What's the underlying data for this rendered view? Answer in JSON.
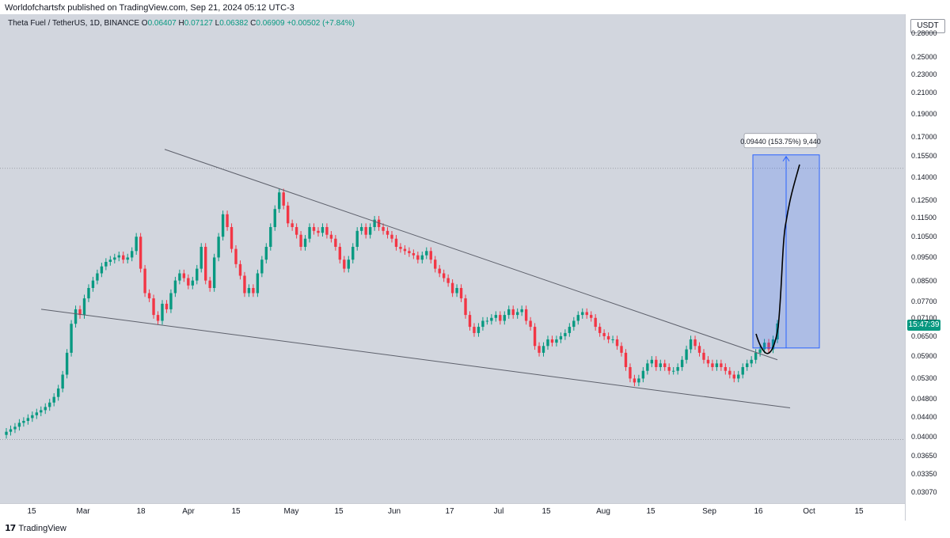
{
  "header": {
    "published": "Worldofchartsfx published on TradingView.com, Sep 21, 2024 05:12 UTC-3"
  },
  "legend": {
    "symbol": "Theta Fuel / TetherUS, 1D, BINANCE",
    "open_label": "O",
    "open": "0.06407",
    "high_label": "H",
    "high": "0.07127",
    "low_label": "L",
    "low": "0.06382",
    "close_label": "C",
    "close": "0.06909",
    "change": "+0.00502 (+7.84%)"
  },
  "price_axis": {
    "currency": "USDT",
    "last_price_badge": "15:47:39"
  },
  "footer": {
    "brand": "TradingView"
  },
  "colors": {
    "up": "#089981",
    "down": "#f23645",
    "measure": "#2962ff",
    "bg": "#d2d6de"
  },
  "chart_data": {
    "type": "candlestick",
    "title": "Theta Fuel / TetherUS, 1D, BINANCE",
    "scale": "log",
    "y_ticks": [
      "0.28000",
      "0.25000",
      "0.23000",
      "0.21000",
      "0.19000",
      "0.17000",
      "0.15500",
      "0.14000",
      "0.12500",
      "0.11500",
      "0.10500",
      "0.09500",
      "0.08500",
      "0.07700",
      "0.07100",
      "0.06500",
      "0.05900",
      "0.05300",
      "0.04800",
      "0.04400",
      "0.04000",
      "0.03650",
      "0.03350",
      "0.03070"
    ],
    "x_ticks": [
      "15",
      "Mar",
      "18",
      "Apr",
      "15",
      "May",
      "15",
      "Jun",
      "17",
      "Jul",
      "15",
      "Aug",
      "15",
      "Sep",
      "16",
      "Oct",
      "15"
    ],
    "ylim": [
      0.0295,
      0.3
    ],
    "closes": [
      0.041,
      0.0415,
      0.042,
      0.0428,
      0.0432,
      0.0438,
      0.0444,
      0.045,
      0.0455,
      0.0462,
      0.0472,
      0.0485,
      0.0505,
      0.054,
      0.06,
      0.069,
      0.074,
      0.072,
      0.078,
      0.082,
      0.085,
      0.088,
      0.091,
      0.093,
      0.094,
      0.095,
      0.096,
      0.094,
      0.095,
      0.098,
      0.105,
      0.09,
      0.08,
      0.078,
      0.072,
      0.07,
      0.076,
      0.074,
      0.08,
      0.085,
      0.088,
      0.086,
      0.083,
      0.085,
      0.09,
      0.1,
      0.085,
      0.082,
      0.095,
      0.105,
      0.117,
      0.11,
      0.099,
      0.092,
      0.087,
      0.08,
      0.082,
      0.08,
      0.088,
      0.094,
      0.1,
      0.11,
      0.12,
      0.13,
      0.122,
      0.112,
      0.11,
      0.106,
      0.1,
      0.104,
      0.11,
      0.108,
      0.107,
      0.11,
      0.106,
      0.104,
      0.1,
      0.094,
      0.09,
      0.094,
      0.1,
      0.108,
      0.11,
      0.106,
      0.11,
      0.114,
      0.11,
      0.108,
      0.106,
      0.104,
      0.1,
      0.099,
      0.098,
      0.097,
      0.096,
      0.094,
      0.096,
      0.098,
      0.094,
      0.09,
      0.088,
      0.086,
      0.084,
      0.08,
      0.082,
      0.078,
      0.072,
      0.068,
      0.066,
      0.068,
      0.07,
      0.07,
      0.071,
      0.072,
      0.07,
      0.072,
      0.074,
      0.072,
      0.073,
      0.074,
      0.07,
      0.068,
      0.062,
      0.06,
      0.062,
      0.064,
      0.063,
      0.064,
      0.065,
      0.066,
      0.068,
      0.07,
      0.072,
      0.073,
      0.072,
      0.071,
      0.068,
      0.066,
      0.065,
      0.064,
      0.064,
      0.062,
      0.06,
      0.056,
      0.053,
      0.052,
      0.053,
      0.055,
      0.057,
      0.058,
      0.056,
      0.057,
      0.056,
      0.055,
      0.055,
      0.056,
      0.058,
      0.061,
      0.064,
      0.062,
      0.06,
      0.058,
      0.057,
      0.056,
      0.057,
      0.056,
      0.055,
      0.054,
      0.053,
      0.054,
      0.056,
      0.057,
      0.058,
      0.06,
      0.061,
      0.063,
      0.061,
      0.064,
      0.0691
    ],
    "trendlines": [
      {
        "name": "upper-resistance",
        "from": [
          0.16,
          0
        ],
        "to": [
          0.058,
          1
        ]
      },
      {
        "name": "lower-support",
        "from": [
          0.074,
          0
        ],
        "to": [
          0.046,
          1
        ]
      }
    ],
    "horizontal_levels": [
      0.146,
      0.0395
    ],
    "annotations": [
      {
        "type": "measure",
        "label": "0.09440 (153.75%) 9,440",
        "from_price": 0.0614,
        "to_price": 0.1558
      },
      {
        "type": "projection",
        "description": "hand-drawn curve"
      }
    ]
  }
}
